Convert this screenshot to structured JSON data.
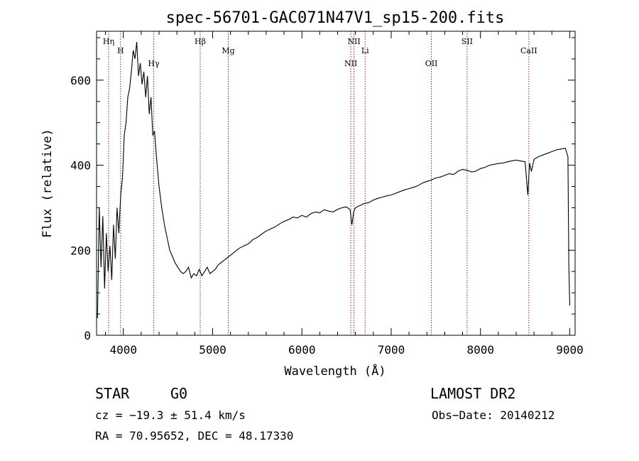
{
  "chart_data": {
    "type": "line",
    "title": "spec-56701-GAC071N47V1_sp15-200.fits",
    "xlabel": "Wavelength (Å)",
    "ylabel": "Flux (relative)",
    "xlim": [
      3700,
      9060
    ],
    "ylim": [
      0,
      715
    ],
    "x_ticks": [
      4000,
      5000,
      6000,
      7000,
      8000,
      9000
    ],
    "y_ticks": [
      0,
      200,
      400,
      600
    ],
    "grid": false,
    "spectral_lines": [
      {
        "label": "Hη",
        "wavelength": 3835
      },
      {
        "label": "H",
        "wavelength": 3969
      },
      {
        "label": "Hγ",
        "wavelength": 4340
      },
      {
        "label": "Hβ",
        "wavelength": 4861
      },
      {
        "label": "Mg",
        "wavelength": 5175
      },
      {
        "label": "NII",
        "wavelength": 6548
      },
      {
        "label": "NII",
        "wavelength": 6583
      },
      {
        "label": "Li",
        "wavelength": 6708
      },
      {
        "label": "OII",
        "wavelength": 7450
      },
      {
        "label": "SII",
        "wavelength": 7850
      },
      {
        "label": "CaII",
        "wavelength": 8542
      }
    ],
    "series": [
      {
        "x": [
          3710,
          3730,
          3750,
          3770,
          3790,
          3810,
          3830,
          3850,
          3870,
          3890,
          3910,
          3930,
          3950,
          3970,
          3990,
          4010,
          4030,
          4050,
          4070,
          4090,
          4110,
          4130,
          4150,
          4170,
          4190,
          4210,
          4230,
          4250,
          4270,
          4290,
          4310,
          4330,
          4350,
          4370,
          4400,
          4430,
          4460,
          4490,
          4520,
          4550,
          4580,
          4610,
          4640,
          4670,
          4700,
          4730,
          4760,
          4790,
          4820,
          4850,
          4880,
          4910,
          4940,
          4970,
          5000,
          5030,
          5060,
          5090,
          5120,
          5150,
          5180,
          5210,
          5240,
          5270,
          5300,
          5350,
          5400,
          5450,
          5500,
          5550,
          5600,
          5650,
          5700,
          5750,
          5800,
          5850,
          5900,
          5950,
          6000,
          6050,
          6100,
          6150,
          6200,
          6250,
          6300,
          6350,
          6400,
          6450,
          6500,
          6540,
          6560,
          6580,
          6600,
          6650,
          6700,
          6750,
          6800,
          6850,
          6900,
          6950,
          7000,
          7050,
          7100,
          7150,
          7200,
          7250,
          7300,
          7350,
          7400,
          7450,
          7500,
          7550,
          7600,
          7650,
          7700,
          7750,
          7800,
          7850,
          7900,
          7950,
          8000,
          8050,
          8100,
          8150,
          8200,
          8250,
          8300,
          8350,
          8400,
          8450,
          8500,
          8530,
          8550,
          8570,
          8600,
          8650,
          8700,
          8750,
          8800,
          8850,
          8900,
          8950,
          8980,
          8990,
          9000
        ],
        "y": [
          40,
          300,
          160,
          280,
          110,
          240,
          150,
          210,
          130,
          260,
          180,
          300,
          240,
          330,
          370,
          470,
          500,
          560,
          580,
          620,
          670,
          650,
          690,
          610,
          640,
          590,
          620,
          560,
          610,
          520,
          560,
          470,
          480,
          420,
          350,
          300,
          260,
          230,
          200,
          185,
          170,
          160,
          150,
          145,
          150,
          160,
          135,
          145,
          140,
          155,
          140,
          150,
          160,
          145,
          150,
          155,
          165,
          170,
          175,
          180,
          185,
          190,
          195,
          200,
          205,
          210,
          215,
          225,
          230,
          238,
          245,
          250,
          255,
          262,
          268,
          272,
          278,
          276,
          282,
          278,
          286,
          290,
          288,
          295,
          292,
          290,
          296,
          300,
          302,
          295,
          260,
          290,
          300,
          305,
          310,
          312,
          318,
          322,
          325,
          328,
          330,
          334,
          338,
          342,
          345,
          348,
          352,
          358,
          362,
          365,
          370,
          372,
          376,
          380,
          378,
          386,
          390,
          388,
          384,
          386,
          392,
          395,
          400,
          402,
          404,
          405,
          408,
          410,
          412,
          410,
          408,
          330,
          405,
          385,
          414,
          420,
          424,
          428,
          432,
          436,
          438,
          440,
          420,
          160,
          70
        ]
      }
    ]
  },
  "info": {
    "object_class": "STAR",
    "subclass": "G0",
    "survey": "LAMOST DR2",
    "redshift": "cz = −19.3 ± 51.4 km/s",
    "obs_date": "Obs−Date: 20140212",
    "coords": "RA =  70.95652, DEC =  48.17330"
  }
}
